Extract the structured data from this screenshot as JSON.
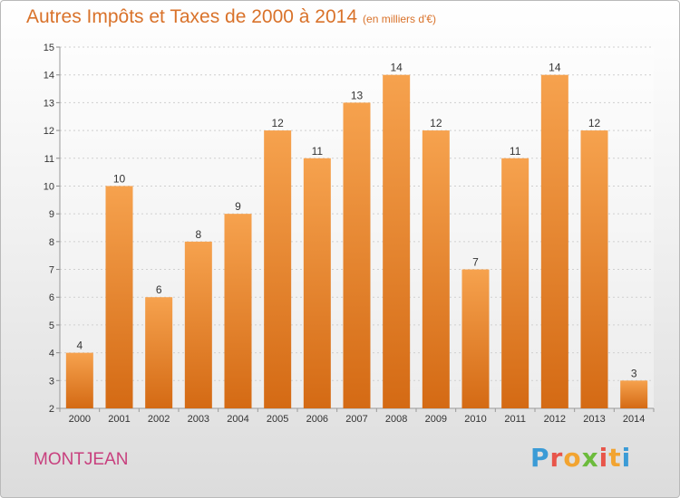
{
  "title": "Autres Impôts et Taxes de 2000 à 2014",
  "unit_note": "(en milliers d'€)",
  "commune": "MONTJEAN",
  "brand": {
    "letters": [
      "P",
      "r",
      "o",
      "x",
      "i",
      "t",
      "i"
    ],
    "colors": [
      "#3b9bd6",
      "#e8554a",
      "#f2a431",
      "#6cbb3c",
      "#e8554a",
      "#f2a431",
      "#3b9bd6"
    ]
  },
  "colors": {
    "bar_top": "#f6a24e",
    "bar_bottom": "#d46a14",
    "title": "#d9722a",
    "commune": "#c8407e"
  },
  "chart_data": {
    "type": "bar",
    "title": "Autres Impôts et Taxes de 2000 à 2014",
    "xlabel": "",
    "ylabel": "",
    "categories": [
      "2000",
      "2001",
      "2002",
      "2003",
      "2004",
      "2005",
      "2006",
      "2007",
      "2008",
      "2009",
      "2010",
      "2011",
      "2012",
      "2013",
      "2014"
    ],
    "values": [
      4,
      10,
      6,
      8,
      9,
      12,
      11,
      13,
      14,
      12,
      7,
      11,
      14,
      12,
      3
    ],
    "data_labels": [
      "4",
      "10",
      "6",
      "8",
      "9",
      "12",
      "11",
      "13",
      "14",
      "12",
      "7",
      "11",
      "14",
      "12",
      "3"
    ],
    "ylim": [
      2,
      15
    ],
    "yticks": [
      "2",
      "3",
      "4",
      "5",
      "6",
      "7",
      "8",
      "9",
      "10",
      "11",
      "12",
      "13",
      "14",
      "15"
    ],
    "grid": true
  }
}
